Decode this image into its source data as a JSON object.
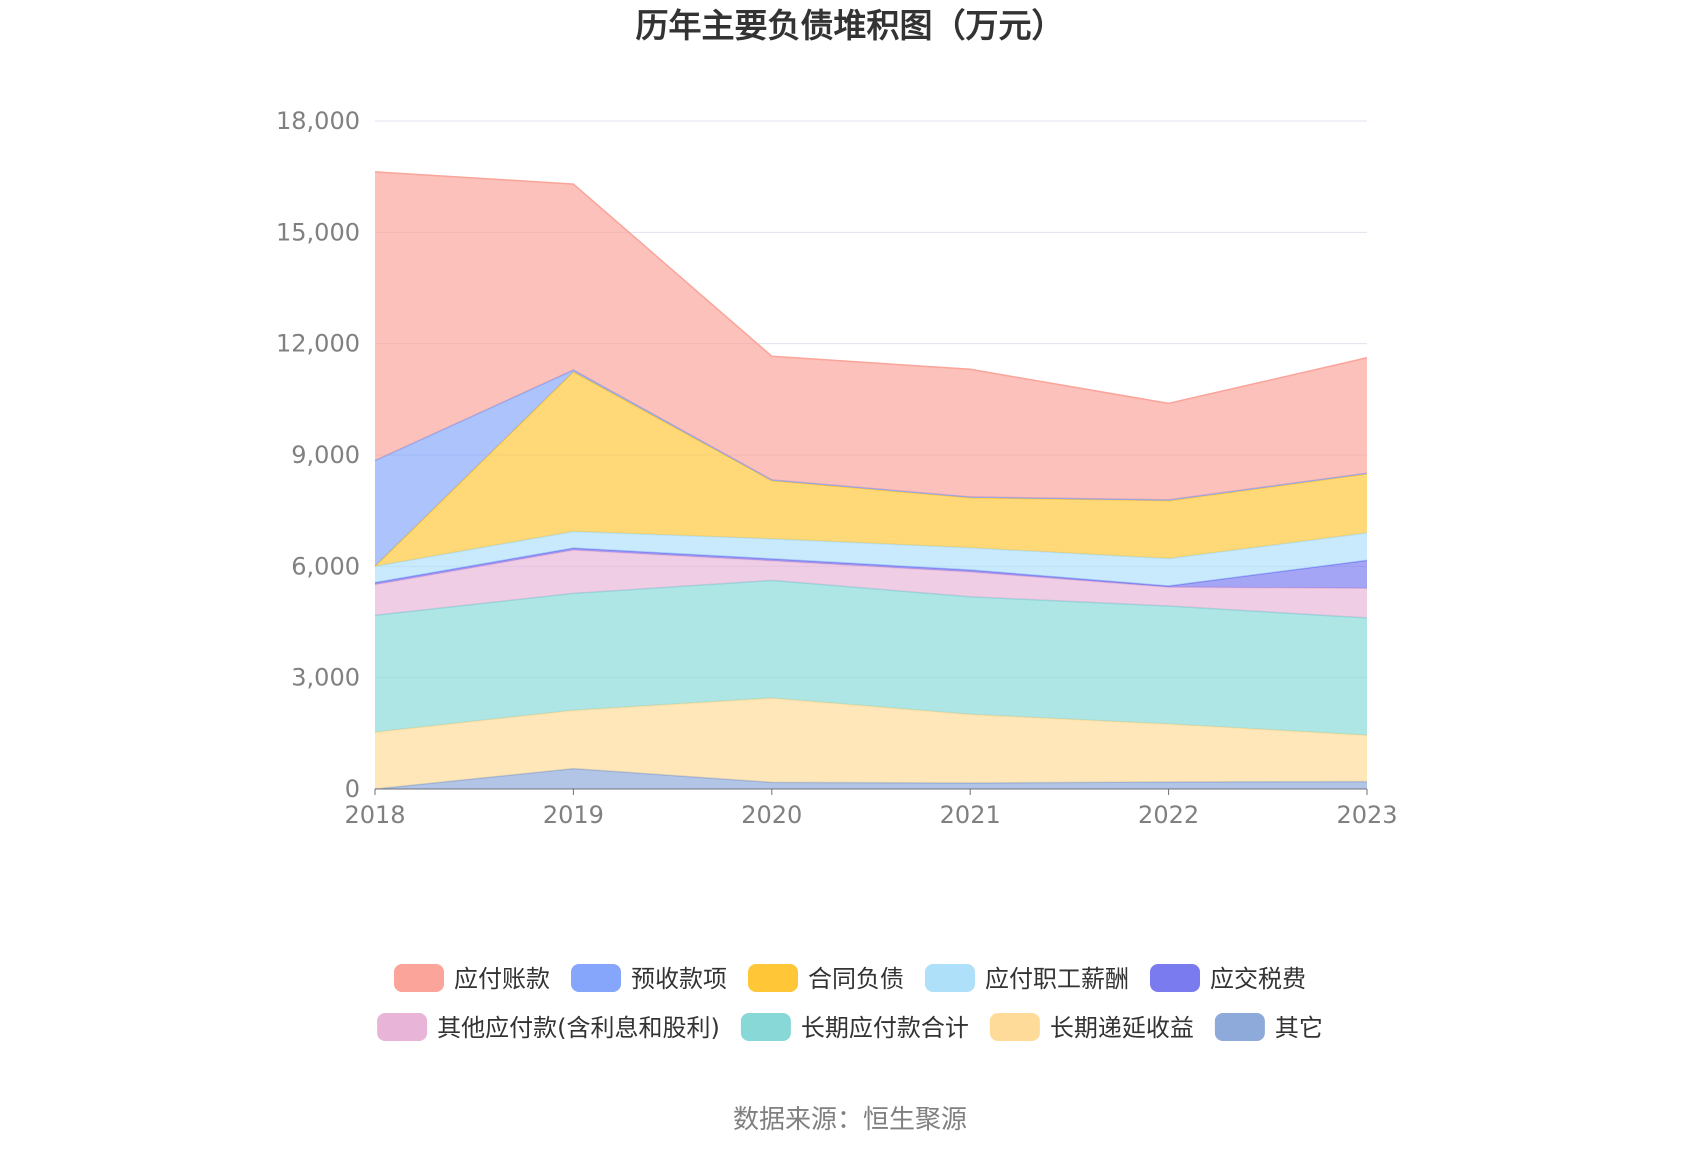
{
  "chart_data": {
    "type": "area",
    "title": "历年主要负债堆积图（万元）",
    "source": "数据来源：恒生聚源",
    "x": [
      "2018",
      "2019",
      "2020",
      "2021",
      "2022",
      "2023"
    ],
    "ylim": [
      0,
      18000
    ],
    "yticks": [
      0,
      3000,
      6000,
      9000,
      12000,
      15000,
      18000
    ],
    "ytick_labels": [
      "0",
      "3,000",
      "6,000",
      "9,000",
      "12,000",
      "15,000",
      "18,000"
    ],
    "stacked": true,
    "grid": true,
    "legend_position": "bottom",
    "series": [
      {
        "name": "其它",
        "color": "#8eaadb",
        "values": [
          0,
          550,
          180,
          160,
          190,
          200
        ]
      },
      {
        "name": "长期递延收益",
        "color": "#ffdb99",
        "values": [
          1530,
          1570,
          2270,
          1850,
          1560,
          1250
        ]
      },
      {
        "name": "长期应付款合计",
        "color": "#88d8d8",
        "values": [
          3150,
          3150,
          3170,
          3170,
          3180,
          3160
        ]
      },
      {
        "name": "其他应付款(含利息和股利)",
        "color": "#e8b5d8",
        "values": [
          830,
          1170,
          530,
          670,
          510,
          800
        ]
      },
      {
        "name": "应交税费",
        "color": "#7b7bf0",
        "values": [
          50,
          50,
          50,
          50,
          30,
          750
        ]
      },
      {
        "name": "应付职工薪酬",
        "color": "#aee0fa",
        "values": [
          440,
          450,
          540,
          600,
          740,
          740
        ]
      },
      {
        "name": "合同负债",
        "color": "#ffc638",
        "values": [
          0,
          4300,
          1570,
          1350,
          1560,
          1590
        ]
      },
      {
        "name": "预收款项",
        "color": "#85a6fb",
        "values": [
          2850,
          50,
          20,
          20,
          20,
          20
        ]
      },
      {
        "name": "应付账款",
        "color": "#faa49a",
        "values": [
          7780,
          5010,
          3330,
          3440,
          2600,
          3110
        ]
      }
    ],
    "legend_order": [
      "应付账款",
      "预收款项",
      "合同负债",
      "应付职工薪酬",
      "应交税费",
      "其他应付款(含利息和股利)",
      "长期应付款合计",
      "长期递延收益",
      "其它"
    ]
  }
}
